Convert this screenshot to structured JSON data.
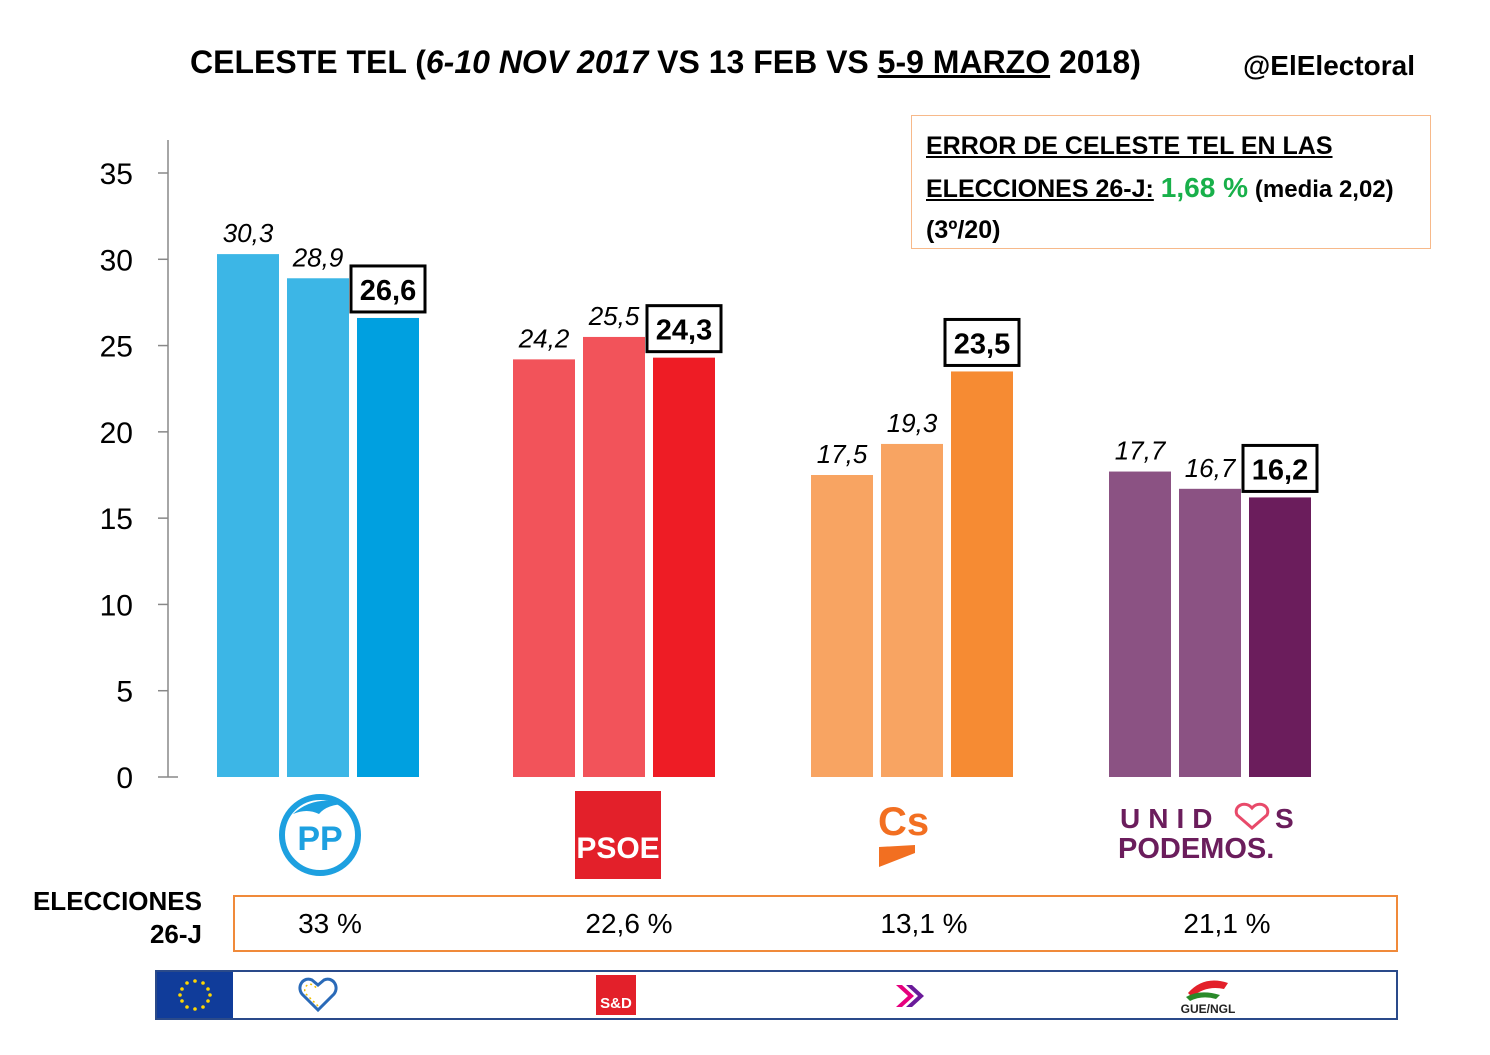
{
  "title": {
    "part1": "CELESTE TEL (",
    "part2": "6-10 NOV 2017",
    "part3": " VS 13 FEB VS ",
    "part4": "5-9 MARZO",
    "part5": " 2018)"
  },
  "handle": "@ElElectoral",
  "error_box": {
    "line1": "ERROR DE CELESTE TEL EN LAS",
    "line2": "ELECCIONES 26-J:",
    "value": "1,68 %",
    "media": "(media 2,02)",
    "rank": "(3º/20)"
  },
  "chart_data": {
    "type": "bar",
    "categories": [
      "PP",
      "PSOE",
      "Cs",
      "UNIDOS PODEMOS"
    ],
    "series": [
      {
        "values": [
          30.3,
          24.2,
          17.5,
          17.7
        ],
        "labels": [
          "30,3",
          "24,2",
          "17,5",
          "17,7"
        ]
      },
      {
        "values": [
          28.9,
          25.5,
          19.3,
          16.7
        ],
        "labels": [
          "28,9",
          "25,5",
          "19,3",
          "16,7"
        ]
      },
      {
        "values": [
          26.6,
          24.3,
          23.5,
          16.2
        ],
        "labels": [
          "26,6",
          "24,3",
          "23,5",
          "16,2"
        ]
      }
    ],
    "colors": [
      [
        "#3cb6e6",
        "#3cb6e6",
        "#00a0e0"
      ],
      [
        "#f2535a",
        "#f2535a",
        "#ee1c25"
      ],
      [
        "#f8a462",
        "#f8a462",
        "#f68b33"
      ],
      [
        "#8b5283",
        "#8b5283",
        "#6b1d5c"
      ]
    ],
    "ylim": [
      0,
      35
    ],
    "yticks": [
      "0",
      "5",
      "10",
      "15",
      "20",
      "25",
      "30",
      "35"
    ],
    "grid": false,
    "legend": "none"
  },
  "logos": {
    "pp": "PP",
    "psoe": "PSOE",
    "cs": "Cs",
    "podemos_line1": "UNID",
    "podemos_line1b": "S",
    "podemos_line2": "PODEMOS."
  },
  "elections": {
    "label_line1": "ELECCIONES",
    "label_line2": "26-J",
    "values": [
      "33 %",
      "22,6 %",
      "13,1 %",
      "21,1 %"
    ]
  },
  "eu_groups": {
    "sd": "S&D",
    "gue": "GUE/NGL"
  }
}
